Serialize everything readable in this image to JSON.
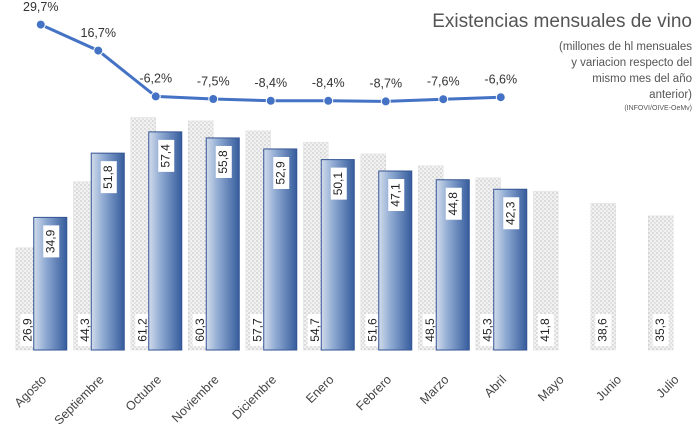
{
  "chart_data": {
    "type": "bar",
    "title": "Existencias mensuales de vino",
    "subtitle": [
      "(millones de hl mensuales",
      "y variacion respecto del",
      "mismo mes del año",
      "anterior)"
    ],
    "source": "(INFOVI/OIVE-OeMv)",
    "categories": [
      "Agosto",
      "Septiembre",
      "Octubre",
      "Noviembre",
      "Diciembre",
      "Enero",
      "Febrero",
      "Marzo",
      "Abril",
      "Mayo",
      "Junio",
      "Julio"
    ],
    "ylim": [
      0,
      70
    ],
    "y2lim": [
      -10,
      30
    ],
    "series": [
      {
        "type": "bar",
        "color": "#d9d9d9",
        "values": [
          26.9,
          44.3,
          61.2,
          60.3,
          57.7,
          54.7,
          51.6,
          48.5,
          45.3,
          41.8,
          38.6,
          35.3
        ],
        "value_labels": [
          "26,9",
          "44,3",
          "61,2",
          "60,3",
          "57,7",
          "54,7",
          "51,6",
          "48,5",
          "45,3",
          "41,8",
          "38,6",
          "35,3"
        ]
      },
      {
        "type": "bar",
        "color": "#4a72b0",
        "values": [
          34.9,
          51.8,
          57.4,
          55.8,
          52.9,
          50.1,
          47.1,
          44.8,
          42.3,
          null,
          null,
          null
        ],
        "value_labels": [
          "34,9",
          "51,8",
          "57,4",
          "55,8",
          "52,9",
          "50,1",
          "47,1",
          "44,8",
          "42,3",
          null,
          null,
          null
        ]
      },
      {
        "type": "line",
        "axis": "y2",
        "color": "#4472c4",
        "values": [
          29.7,
          16.7,
          -6.2,
          -7.5,
          -8.4,
          -8.4,
          -8.7,
          -7.6,
          -6.6,
          null,
          null,
          null
        ],
        "value_labels": [
          "29,7%",
          "16,7%",
          "-6,2%",
          "-7,5%",
          "-8,4%",
          "-8,4%",
          "-8,7%",
          "-7,6%",
          "-6,6%",
          null,
          null,
          null
        ]
      }
    ]
  }
}
